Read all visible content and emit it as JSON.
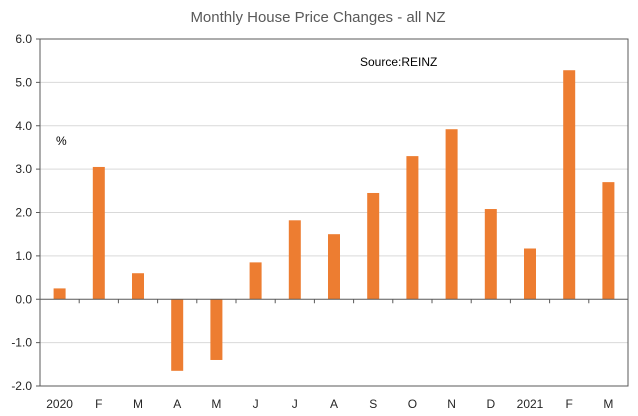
{
  "chart_data": {
    "type": "bar",
    "title": "Monthly House Price Changes - all NZ",
    "ylabel": "%",
    "annotation": "Source:REINZ",
    "categories": [
      "2020",
      "F",
      "M",
      "A",
      "M",
      "J",
      "J",
      "A",
      "S",
      "O",
      "N",
      "D",
      "2021",
      "F",
      "M"
    ],
    "values": [
      0.25,
      3.05,
      0.6,
      -1.65,
      -1.4,
      0.85,
      1.82,
      1.5,
      2.45,
      3.3,
      3.92,
      2.08,
      1.17,
      5.28,
      2.7
    ],
    "ylim": [
      -2.0,
      6.0
    ],
    "yticks": [
      -2.0,
      -1.0,
      0.0,
      1.0,
      2.0,
      3.0,
      4.0,
      5.0,
      6.0
    ],
    "ytick_labels": [
      "-2.0",
      "-1.0",
      "0.0",
      "1.0",
      "2.0",
      "3.0",
      "4.0",
      "5.0",
      "6.0"
    ],
    "grid": true,
    "bar_color": "#ED7D31",
    "grid_color": "#D9D9D9",
    "axis_color": "#595959"
  }
}
